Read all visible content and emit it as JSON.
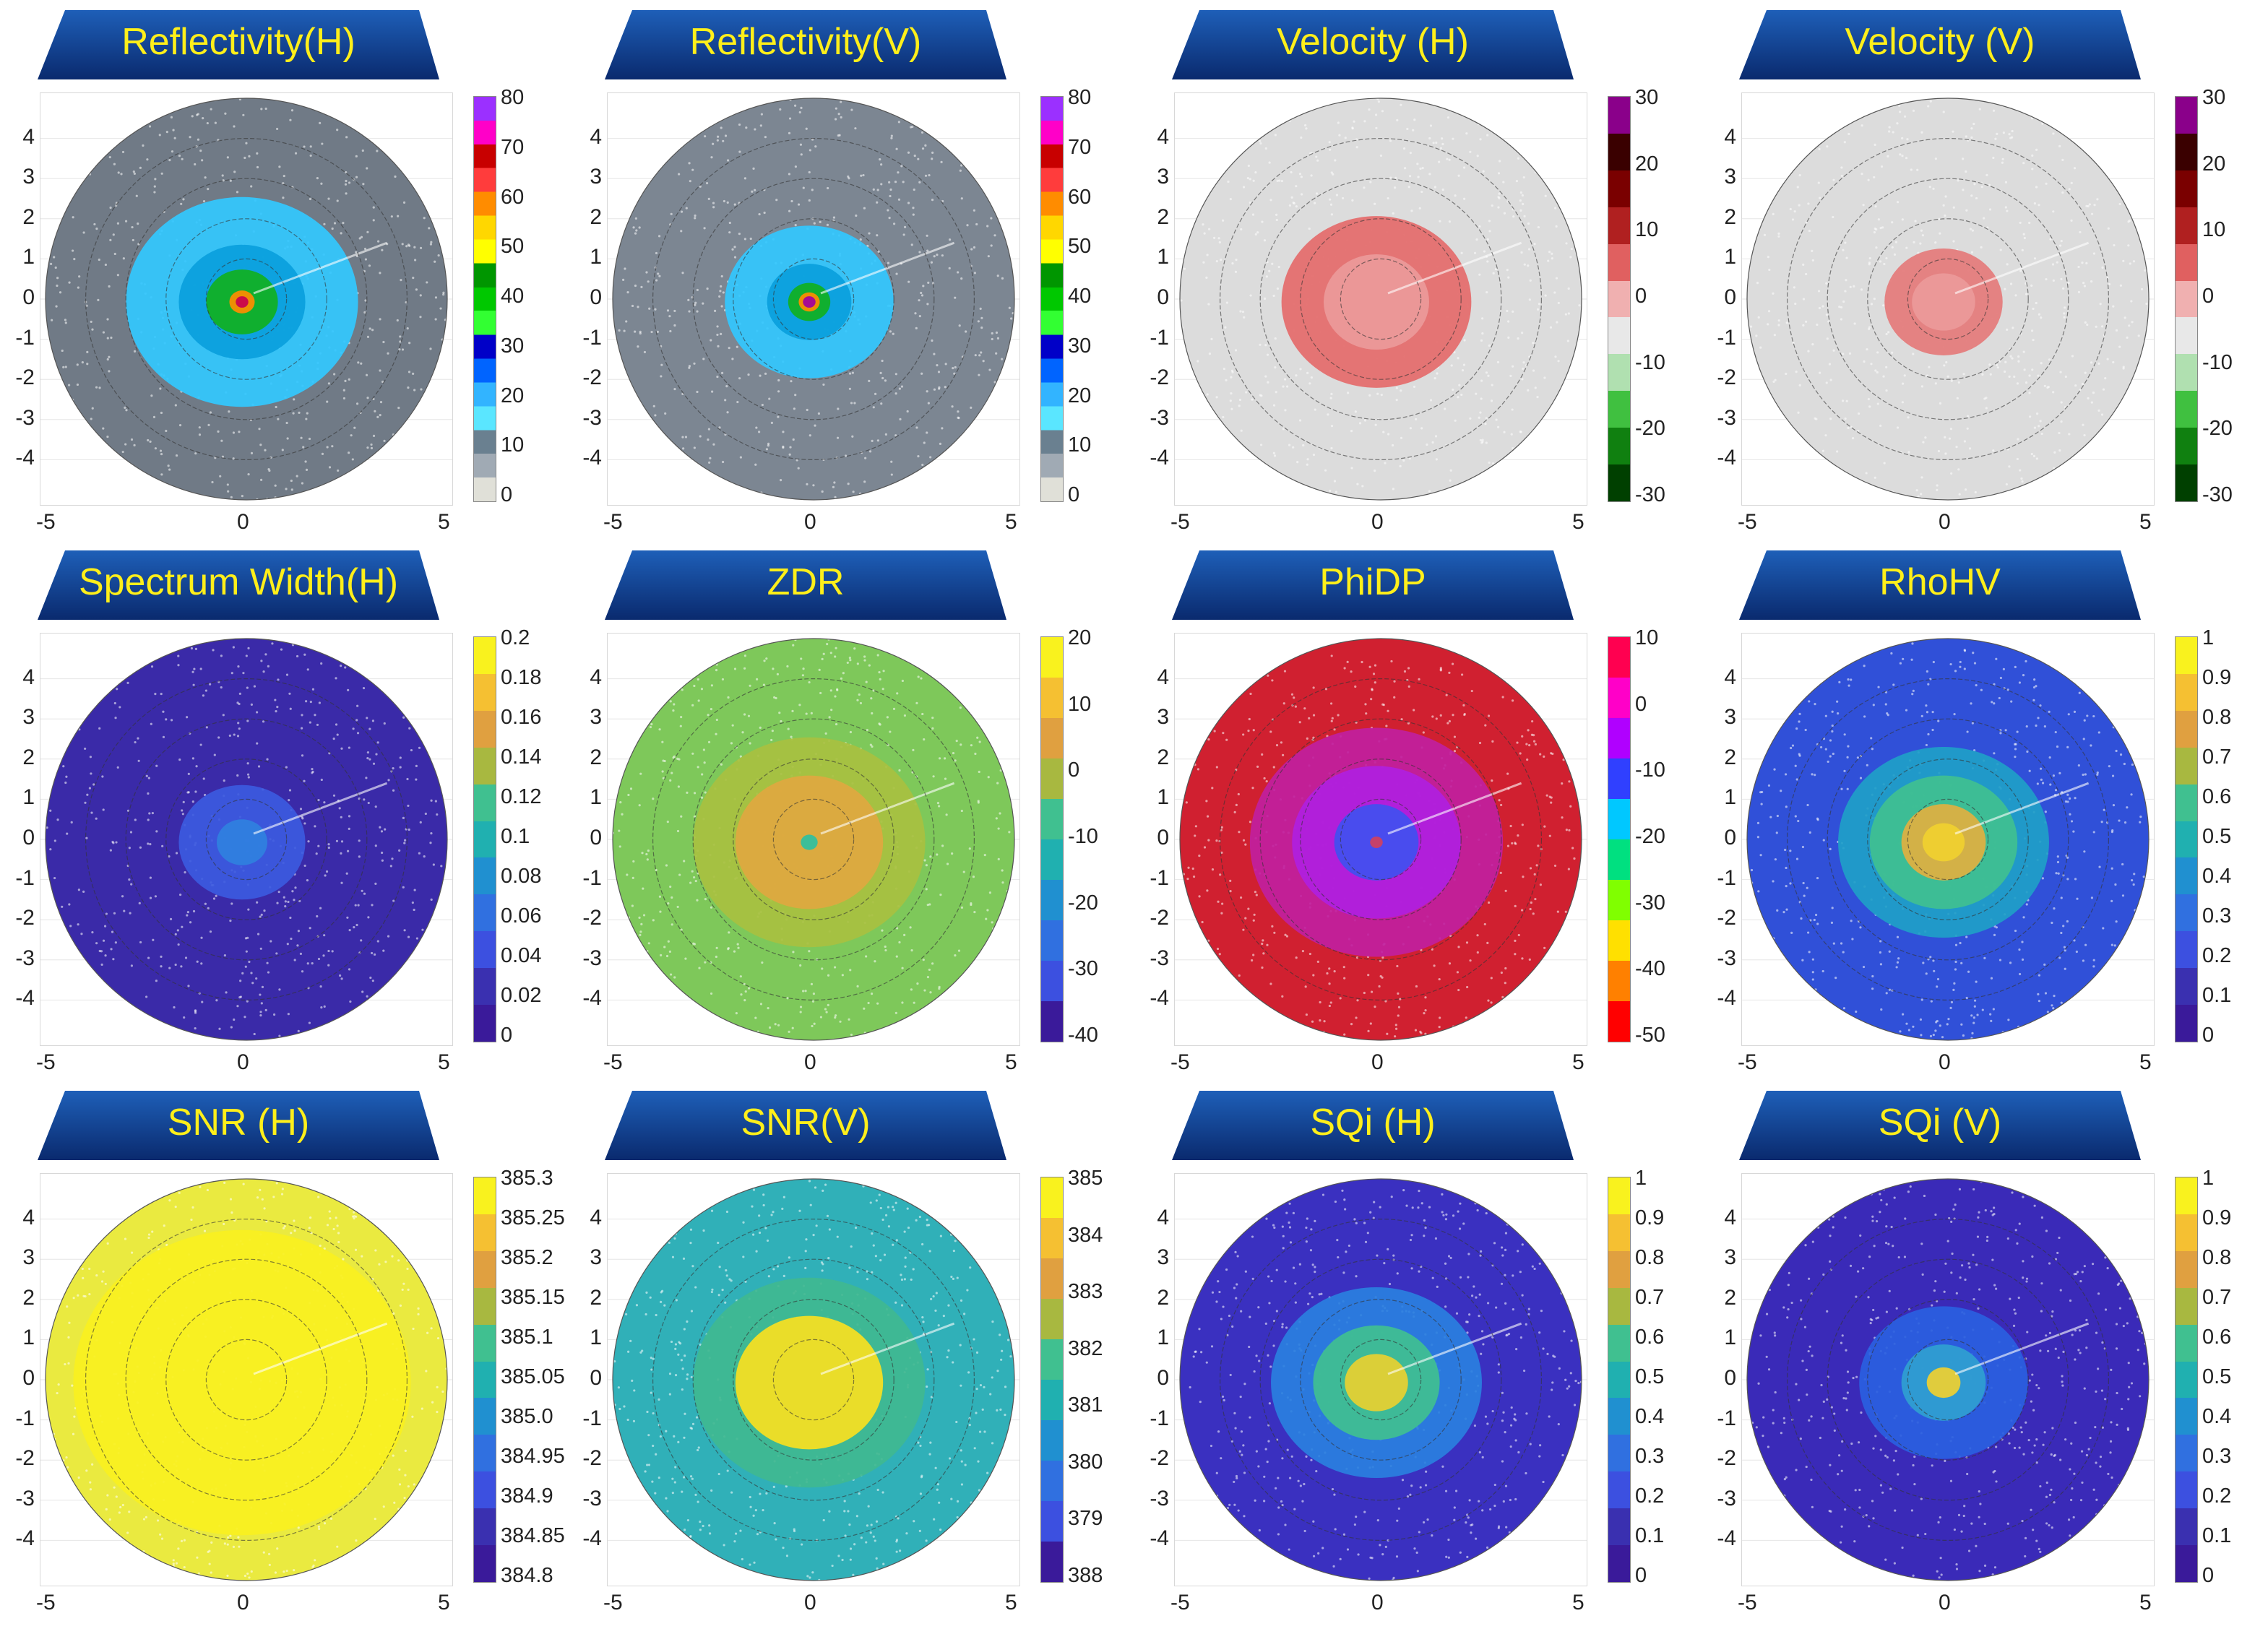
{
  "colors": {
    "banner_top": "#0a2a6e",
    "banner_bottom": "#1e5fb8",
    "title_text": "#ffef1a"
  },
  "chart_data": [
    {
      "type": "heatmap",
      "title": "Reflectivity(H)",
      "x_ticks": [
        "-5",
        "0",
        "5"
      ],
      "y_ticks": [
        "4",
        "3",
        "2",
        "1",
        "0",
        "-1",
        "-2",
        "-3",
        "-4"
      ],
      "xlim": [
        -5,
        5
      ],
      "ylim": [
        -5,
        5
      ],
      "range_rings": [
        1,
        2,
        3,
        4
      ],
      "colorbar": {
        "labels": [
          "80",
          "70",
          "60",
          "50",
          "40",
          "30",
          "20",
          "10",
          "0"
        ],
        "colors": [
          "#9b30ff",
          "#ff00c8",
          "#c80000",
          "#ff3c3c",
          "#ff8c00",
          "#ffd700",
          "#ffff00",
          "#009600",
          "#00c800",
          "#32ff32",
          "#0000c8",
          "#0064ff",
          "#32b4ff",
          "#5ae6ff",
          "#6a8090",
          "#a0aab4",
          "#e0e0d8"
        ]
      },
      "field": {
        "bg": "#707a86",
        "bands": [
          [
            0.55,
            "#32c8ff"
          ],
          [
            0.3,
            "#0aa0dc"
          ],
          [
            0.17,
            "#10b020"
          ],
          [
            0.06,
            "#ff8c00"
          ],
          [
            0.03,
            "#c80050"
          ]
        ]
      }
    },
    {
      "type": "heatmap",
      "title": "Reflectivity(V)",
      "x_ticks": [
        "-5",
        "0",
        "5"
      ],
      "y_ticks": [
        "4",
        "3",
        "2",
        "1",
        "0",
        "-1",
        "-2",
        "-3",
        "-4"
      ],
      "xlim": [
        -5,
        5
      ],
      "ylim": [
        -5,
        5
      ],
      "range_rings": [
        1,
        2,
        3,
        4
      ],
      "colorbar": {
        "labels": [
          "80",
          "70",
          "60",
          "50",
          "40",
          "30",
          "20",
          "10",
          "0"
        ],
        "colors": [
          "#9b30ff",
          "#ff00c8",
          "#c80000",
          "#ff3c3c",
          "#ff8c00",
          "#ffd700",
          "#ffff00",
          "#009600",
          "#00c800",
          "#32ff32",
          "#0000c8",
          "#0064ff",
          "#32b4ff",
          "#5ae6ff",
          "#6a8090",
          "#a0aab4",
          "#e0e0d8"
        ]
      },
      "field": {
        "bg": "#7c8692",
        "bands": [
          [
            0.4,
            "#32c8ff"
          ],
          [
            0.2,
            "#0aa0dc"
          ],
          [
            0.1,
            "#10b020"
          ],
          [
            0.05,
            "#ff8c00"
          ],
          [
            0.03,
            "#a000a0"
          ]
        ]
      }
    },
    {
      "type": "heatmap",
      "title": "Velocity (H)",
      "x_ticks": [
        "-5",
        "0",
        "5"
      ],
      "y_ticks": [
        "4",
        "3",
        "2",
        "1",
        "0",
        "-1",
        "-2",
        "-3",
        "-4"
      ],
      "xlim": [
        -5,
        5
      ],
      "ylim": [
        -5,
        5
      ],
      "range_rings": [
        1,
        2,
        3,
        4
      ],
      "colorbar": {
        "labels": [
          "30",
          "20",
          "10",
          "0",
          "-10",
          "-20",
          "-30"
        ],
        "colors": [
          "#8a008a",
          "#3a0000",
          "#7a0000",
          "#b02020",
          "#e06060",
          "#f0b0b0",
          "#e8e8e8",
          "#b0e0b0",
          "#40c040",
          "#108010",
          "#004000"
        ]
      },
      "field": {
        "bg": "#dcdcdc",
        "bands": [
          [
            0.45,
            "#e46a6a"
          ],
          [
            0.25,
            "#ec9a9a"
          ]
        ]
      }
    },
    {
      "type": "heatmap",
      "title": "Velocity (V)",
      "x_ticks": [
        "-5",
        "0",
        "5"
      ],
      "y_ticks": [
        "4",
        "3",
        "2",
        "1",
        "0",
        "-1",
        "-2",
        "-3",
        "-4"
      ],
      "xlim": [
        -5,
        5
      ],
      "ylim": [
        -5,
        5
      ],
      "range_rings": [
        1,
        2,
        3,
        4
      ],
      "colorbar": {
        "labels": [
          "30",
          "20",
          "10",
          "0",
          "-10",
          "-20",
          "-30"
        ],
        "colors": [
          "#8a008a",
          "#3a0000",
          "#7a0000",
          "#b02020",
          "#e06060",
          "#f0b0b0",
          "#e8e8e8",
          "#b0e0b0",
          "#40c040",
          "#108010",
          "#004000"
        ]
      },
      "field": {
        "bg": "#dcdcdc",
        "bands": [
          [
            0.28,
            "#e47a7a"
          ],
          [
            0.15,
            "#ec9a9a"
          ]
        ]
      }
    },
    {
      "type": "heatmap",
      "title": "Spectrum Width(H)",
      "x_ticks": [
        "-5",
        "0",
        "5"
      ],
      "y_ticks": [
        "4",
        "3",
        "2",
        "1",
        "0",
        "-1",
        "-2",
        "-3",
        "-4"
      ],
      "xlim": [
        -5,
        5
      ],
      "ylim": [
        -5,
        5
      ],
      "range_rings": [
        1,
        2,
        3,
        4
      ],
      "colorbar": {
        "labels": [
          "0.2",
          "0.18",
          "0.16",
          "0.14",
          "0.12",
          "0.1",
          "0.08",
          "0.06",
          "0.04",
          "0.02",
          "0"
        ],
        "colors": [
          "#f9f21e",
          "#f5c032",
          "#e0a040",
          "#a8b840",
          "#40c090",
          "#20b0b0",
          "#2090d0",
          "#3070e0",
          "#3c50e0",
          "#3a30b0",
          "#3a1a9a"
        ]
      },
      "field": {
        "bg": "#3a2aa8",
        "bands": [
          [
            0.3,
            "#3c5ae0"
          ],
          [
            0.12,
            "#3080e0"
          ]
        ]
      }
    },
    {
      "type": "heatmap",
      "title": "ZDR",
      "x_ticks": [
        "-5",
        "0",
        "5"
      ],
      "y_ticks": [
        "4",
        "3",
        "2",
        "1",
        "0",
        "-1",
        "-2",
        "-3",
        "-4"
      ],
      "xlim": [
        -5,
        5
      ],
      "ylim": [
        -5,
        5
      ],
      "range_rings": [
        1,
        2,
        3,
        4
      ],
      "colorbar": {
        "labels": [
          "20",
          "10",
          "0",
          "-10",
          "-20",
          "-30",
          "-40"
        ],
        "colors": [
          "#f9f21e",
          "#f5c032",
          "#e0a040",
          "#a8b840",
          "#40c090",
          "#20b0b0",
          "#2090d0",
          "#3070e0",
          "#3c50e0",
          "#3a1a9a"
        ]
      },
      "field": {
        "bg": "#7ec85a",
        "bands": [
          [
            0.55,
            "#a8c040"
          ],
          [
            0.35,
            "#e0a840"
          ],
          [
            0.04,
            "#30c0a0"
          ]
        ]
      }
    },
    {
      "type": "heatmap",
      "title": "PhiDP",
      "x_ticks": [
        "-5",
        "0",
        "5"
      ],
      "y_ticks": [
        "4",
        "3",
        "2",
        "1",
        "0",
        "-1",
        "-2",
        "-3",
        "-4"
      ],
      "xlim": [
        -5,
        5
      ],
      "ylim": [
        -5,
        5
      ],
      "range_rings": [
        1,
        2,
        3,
        4
      ],
      "colorbar": {
        "labels": [
          "10",
          "0",
          "-10",
          "-20",
          "-30",
          "-40",
          "-50"
        ],
        "colors": [
          "#ff0050",
          "#ff00c8",
          "#b000ff",
          "#3040ff",
          "#00c8ff",
          "#00e080",
          "#80ff00",
          "#ffe000",
          "#ff8000",
          "#ff0000"
        ]
      },
      "field": {
        "bg": "#d02030",
        "bands": [
          [
            0.6,
            "#c020a0"
          ],
          [
            0.4,
            "#b020e0"
          ],
          [
            0.2,
            "#4050f0"
          ],
          [
            0.03,
            "#d04060"
          ]
        ]
      }
    },
    {
      "type": "heatmap",
      "title": "RhoHV",
      "x_ticks": [
        "-5",
        "0",
        "5"
      ],
      "y_ticks": [
        "4",
        "3",
        "2",
        "1",
        "0",
        "-1",
        "-2",
        "-3",
        "-4"
      ],
      "xlim": [
        -5,
        5
      ],
      "ylim": [
        -5,
        5
      ],
      "range_rings": [
        1,
        2,
        3,
        4
      ],
      "colorbar": {
        "labels": [
          "1",
          "0.9",
          "0.8",
          "0.7",
          "0.6",
          "0.5",
          "0.4",
          "0.3",
          "0.2",
          "0.1",
          "0"
        ],
        "colors": [
          "#f9f21e",
          "#f5c032",
          "#e0a040",
          "#a8b840",
          "#40c090",
          "#20b0b0",
          "#2090d0",
          "#3070e0",
          "#3c50e0",
          "#3a30b0",
          "#3a1a9a"
        ]
      },
      "field": {
        "bg": "#3050d8",
        "bands": [
          [
            0.5,
            "#20a0c8"
          ],
          [
            0.35,
            "#40c090"
          ],
          [
            0.2,
            "#e0b040"
          ],
          [
            0.1,
            "#f0d030"
          ]
        ]
      }
    },
    {
      "type": "heatmap",
      "title": "SNR (H)",
      "x_ticks": [
        "-5",
        "0",
        "5"
      ],
      "y_ticks": [
        "4",
        "3",
        "2",
        "1",
        "0",
        "-1",
        "-2",
        "-3",
        "-4"
      ],
      "xlim": [
        -5,
        5
      ],
      "ylim": [
        -5,
        5
      ],
      "range_rings": [
        1,
        2,
        3,
        4
      ],
      "colorbar": {
        "labels": [
          "385.3",
          "385.25",
          "385.2",
          "385.15",
          "385.1",
          "385.05",
          "385.0",
          "384.95",
          "384.9",
          "384.85",
          "384.8"
        ],
        "colors": [
          "#f9f21e",
          "#f5c032",
          "#e0a040",
          "#a8b840",
          "#40c090",
          "#20b0b0",
          "#2090d0",
          "#3070e0",
          "#3c50e0",
          "#3a30b0",
          "#3a1a9a"
        ]
      },
      "field": {
        "bg": "#eaea40",
        "bands": [
          [
            0.8,
            "#f8f020"
          ]
        ]
      }
    },
    {
      "type": "heatmap",
      "title": "SNR(V)",
      "x_ticks": [
        "-5",
        "0",
        "5"
      ],
      "y_ticks": [
        "4",
        "3",
        "2",
        "1",
        "0",
        "-1",
        "-2",
        "-3",
        "-4"
      ],
      "xlim": [
        -5,
        5
      ],
      "ylim": [
        -5,
        5
      ],
      "range_rings": [
        1,
        2,
        3,
        4
      ],
      "colorbar": {
        "labels": [
          "385",
          "384",
          "383",
          "382",
          "381",
          "380",
          "379",
          "388"
        ],
        "colors": [
          "#f9f21e",
          "#f5c032",
          "#e0a040",
          "#a8b840",
          "#40c090",
          "#20b0b0",
          "#2090d0",
          "#3070e0",
          "#3c50e0",
          "#3a1a9a"
        ]
      },
      "field": {
        "bg": "#30b0b8",
        "bands": [
          [
            0.55,
            "#40b890"
          ],
          [
            0.35,
            "#f8e020"
          ]
        ]
      }
    },
    {
      "type": "heatmap",
      "title": "SQi (H)",
      "x_ticks": [
        "-5",
        "0",
        "5"
      ],
      "y_ticks": [
        "4",
        "3",
        "2",
        "1",
        "0",
        "-1",
        "-2",
        "-3",
        "-4"
      ],
      "xlim": [
        -5,
        5
      ],
      "ylim": [
        -5,
        5
      ],
      "range_rings": [
        1,
        2,
        3,
        4
      ],
      "colorbar": {
        "labels": [
          "1",
          "0.9",
          "0.8",
          "0.7",
          "0.6",
          "0.5",
          "0.4",
          "0.3",
          "0.2",
          "0.1",
          "0"
        ],
        "colors": [
          "#f9f21e",
          "#f5c032",
          "#e0a040",
          "#a8b840",
          "#40c090",
          "#20b0b0",
          "#2090d0",
          "#3070e0",
          "#3c50e0",
          "#3a30b0",
          "#3a1a9a"
        ]
      },
      "field": {
        "bg": "#3a30c0",
        "bands": [
          [
            0.5,
            "#2a80e0"
          ],
          [
            0.3,
            "#40c090"
          ],
          [
            0.15,
            "#e8d030"
          ]
        ]
      }
    },
    {
      "type": "heatmap",
      "title": "SQi (V)",
      "x_ticks": [
        "-5",
        "0",
        "5"
      ],
      "y_ticks": [
        "4",
        "3",
        "2",
        "1",
        "0",
        "-1",
        "-2",
        "-3",
        "-4"
      ],
      "xlim": [
        -5,
        5
      ],
      "ylim": [
        -5,
        5
      ],
      "range_rings": [
        1,
        2,
        3,
        4
      ],
      "colorbar": {
        "labels": [
          "1",
          "0.9",
          "0.8",
          "0.7",
          "0.6",
          "0.5",
          "0.4",
          "0.3",
          "0.2",
          "0.1",
          "0"
        ],
        "colors": [
          "#f9f21e",
          "#f5c032",
          "#e0a040",
          "#a8b840",
          "#40c090",
          "#20b0b0",
          "#2090d0",
          "#3070e0",
          "#3c50e0",
          "#3a30b0",
          "#3a1a9a"
        ]
      },
      "field": {
        "bg": "#3a2ab8",
        "bands": [
          [
            0.4,
            "#2a60e0"
          ],
          [
            0.2,
            "#30a0d0"
          ],
          [
            0.08,
            "#f0d030"
          ]
        ]
      }
    }
  ]
}
